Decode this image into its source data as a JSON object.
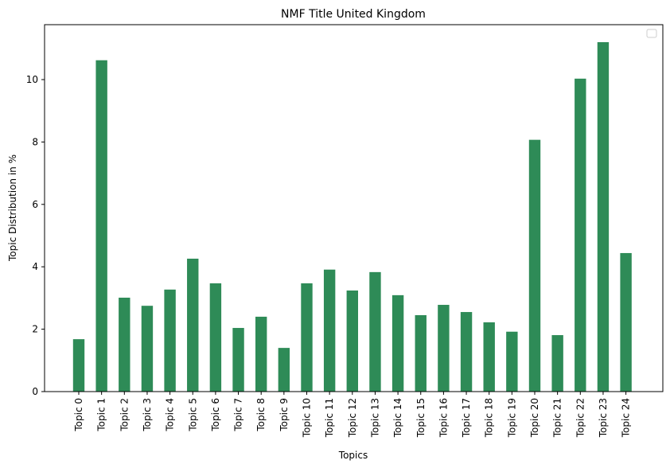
{
  "chart_data": {
    "type": "bar",
    "title": "NMF Title United Kingdom",
    "xlabel": "Topics",
    "ylabel": "Topic Distribution in %",
    "ylim": [
      0,
      11.76
    ],
    "yticks": [
      0,
      2,
      4,
      6,
      8,
      10
    ],
    "grid": false,
    "legend": "top-right",
    "legend_entries": [],
    "bar_color": "#2e8b57",
    "categories": [
      "Topic 0",
      "Topic 1",
      "Topic 2",
      "Topic 3",
      "Topic 4",
      "Topic 5",
      "Topic 6",
      "Topic 7",
      "Topic 8",
      "Topic 9",
      "Topic 10",
      "Topic 11",
      "Topic 12",
      "Topic 13",
      "Topic 14",
      "Topic 15",
      "Topic 16",
      "Topic 17",
      "Topic 18",
      "Topic 19",
      "Topic 20",
      "Topic 21",
      "Topic 22",
      "Topic 23",
      "Topic 24"
    ],
    "values": [
      1.68,
      10.62,
      3.01,
      2.75,
      3.27,
      4.26,
      3.47,
      2.04,
      2.4,
      1.4,
      3.47,
      3.91,
      3.24,
      3.83,
      3.09,
      2.45,
      2.78,
      2.55,
      2.22,
      1.92,
      8.07,
      1.81,
      10.03,
      11.2,
      4.44
    ]
  }
}
